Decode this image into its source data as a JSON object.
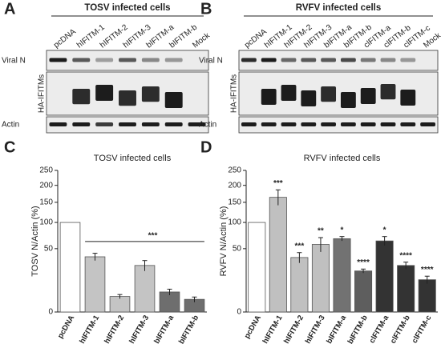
{
  "blots": [
    {
      "panel": "A",
      "title": "TOSV infected cells",
      "lanes": [
        "pcDNA",
        "hIFITM-1",
        "hIFITM-2",
        "hIFITM-3",
        "bIFITM-a",
        "bIFITM-b",
        "Mock"
      ],
      "rows": [
        "Viral N",
        "HA-IFITMs",
        "Actin"
      ]
    },
    {
      "panel": "B",
      "title": "RVFV infected cells",
      "lanes": [
        "pcDNA",
        "hIFITM-1",
        "hIFITM-2",
        "hIFITM-3",
        "bIFITM-a",
        "bIFITM-b",
        "clFITM-a",
        "clFITM-b",
        "clFITM-c",
        "Mock"
      ],
      "rows": [
        "Viral N",
        "HA-IFITMs",
        "Actin"
      ]
    }
  ],
  "chart_data": [
    {
      "type": "bar",
      "panel": "C",
      "title": "TOSV infected cells",
      "y_label": "TOSV N/Actin (%)",
      "categories": [
        "pcDNA",
        "hIFITM-1",
        "hIFITM-2",
        "hIFITM-3",
        "bIFITM-a",
        "bIFITM-b"
      ],
      "values": [
        100,
        38,
        3,
        27,
        5,
        2
      ],
      "errors": [
        0,
        5,
        0.8,
        6,
        1.5,
        0.8
      ],
      "colors": [
        "#ffffff",
        "#c4c4c4",
        "#c4c4c4",
        "#c4c4c4",
        "#6e6e6e",
        "#6e6e6e"
      ],
      "significance": "***",
      "ylim": [
        0,
        250
      ],
      "yticks": [
        0,
        50,
        100,
        150,
        200,
        250
      ],
      "yscale": "sqrt"
    },
    {
      "type": "bar",
      "panel": "D",
      "title": "RVFV infected cells",
      "y_label": "RVFV N/Actin (%)",
      "categories": [
        "pcDNA",
        "hIFITM-1",
        "hIFITM-2",
        "hIFITM-3",
        "bIFITM-a",
        "bIFITM-b",
        "clFITM-a",
        "clFITM-b",
        "clFITM-c"
      ],
      "values": [
        100,
        164,
        37,
        57,
        67,
        21,
        63,
        27,
        13
      ],
      "errors": [
        0,
        22,
        7,
        12,
        4,
        2,
        8,
        4,
        3
      ],
      "colors": [
        "#ffffff",
        "#c0c0c0",
        "#c0c0c0",
        "#c0c0c0",
        "#727272",
        "#5e5e5e",
        "#333333",
        "#333333",
        "#333333"
      ],
      "annotations": [
        null,
        "***",
        "***",
        "**",
        "*",
        "****",
        "*",
        "****",
        "****"
      ],
      "ylim": [
        0,
        250
      ],
      "yticks": [
        0,
        50,
        100,
        150,
        200,
        250
      ],
      "yscale": "sqrt"
    }
  ]
}
